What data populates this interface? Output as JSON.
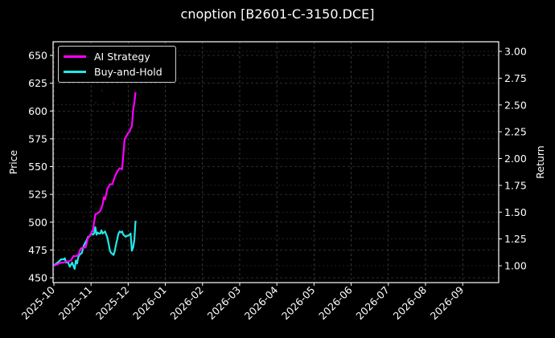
{
  "chart_data": {
    "type": "line",
    "title": "cnoption [B2601-C-3150.DCE]",
    "xlabel": "",
    "ylabel": "Price",
    "y2label": "Return",
    "x_ticks": [
      "2025-10",
      "2025-11",
      "2025-12",
      "2026-01",
      "2026-02",
      "2026-03",
      "2026-04",
      "2026-05",
      "2026-06",
      "2026-07",
      "2026-08",
      "2026-09"
    ],
    "y_ticks": [
      450,
      475,
      500,
      525,
      550,
      575,
      600,
      625,
      650
    ],
    "y2_ticks": [
      "1.00",
      "1.25",
      "1.50",
      "1.75",
      "2.00",
      "2.25",
      "2.50",
      "2.75",
      "3.00"
    ],
    "ylim": [
      446,
      662
    ],
    "y2lim": [
      0.95,
      3.1
    ],
    "grid": true,
    "legend_position": "upper left",
    "series": [
      {
        "name": "AI Strategy",
        "color": "#ff00ff",
        "axis": "right",
        "x_days": [
          0,
          2,
          4,
          6,
          8,
          10,
          12,
          14,
          15,
          16,
          18,
          20,
          22,
          24,
          26,
          28,
          30,
          32,
          34,
          36,
          38,
          40,
          41,
          42,
          44,
          46,
          48,
          50,
          52,
          54,
          56,
          58,
          60,
          61,
          62,
          63,
          64,
          65,
          66,
          67
        ],
        "values": [
          1.0,
          1.01,
          1.02,
          1.03,
          1.03,
          1.04,
          1.04,
          1.05,
          1.07,
          1.09,
          1.09,
          1.1,
          1.16,
          1.17,
          1.17,
          1.26,
          1.29,
          1.33,
          1.48,
          1.49,
          1.51,
          1.57,
          1.64,
          1.62,
          1.72,
          1.76,
          1.76,
          1.83,
          1.88,
          1.91,
          1.9,
          2.18,
          2.22,
          2.24,
          2.25,
          2.28,
          2.3,
          2.45,
          2.52,
          2.62
        ]
      },
      {
        "name": "Buy-and-Hold",
        "color": "#22e8e8",
        "axis": "right",
        "x_days": [
          0,
          2,
          4,
          6,
          8,
          9,
          10,
          11,
          12,
          13,
          14,
          15,
          16,
          17,
          18,
          19,
          20,
          21,
          22,
          23,
          24,
          25,
          26,
          27,
          28,
          29,
          30,
          31,
          32,
          33,
          34,
          35,
          36,
          37,
          38,
          39,
          40,
          41,
          42,
          43,
          44,
          45,
          46,
          47,
          48,
          49,
          50,
          51,
          52,
          53,
          54,
          55,
          56,
          57,
          58,
          59,
          60,
          61,
          62,
          63,
          64,
          65,
          66,
          67
        ],
        "values": [
          1.0,
          1.02,
          1.04,
          1.06,
          1.06,
          1.07,
          1.03,
          1.04,
          1.02,
          0.99,
          1.01,
          1.03,
          1.0,
          0.97,
          1.05,
          1.02,
          1.08,
          1.1,
          1.11,
          1.12,
          1.17,
          1.2,
          1.22,
          1.24,
          1.27,
          1.27,
          1.29,
          1.3,
          1.29,
          1.3,
          1.36,
          1.29,
          1.31,
          1.3,
          1.3,
          1.33,
          1.3,
          1.31,
          1.32,
          1.29,
          1.26,
          1.2,
          1.14,
          1.12,
          1.11,
          1.1,
          1.14,
          1.2,
          1.25,
          1.3,
          1.32,
          1.31,
          1.32,
          1.29,
          1.28,
          1.27,
          1.28,
          1.28,
          1.29,
          1.3,
          1.14,
          1.17,
          1.24,
          1.42
        ]
      }
    ]
  },
  "legend": {
    "items": [
      {
        "label": "AI Strategy",
        "color": "#ff00ff"
      },
      {
        "label": "Buy-and-Hold",
        "color": "#22e8e8"
      }
    ]
  }
}
